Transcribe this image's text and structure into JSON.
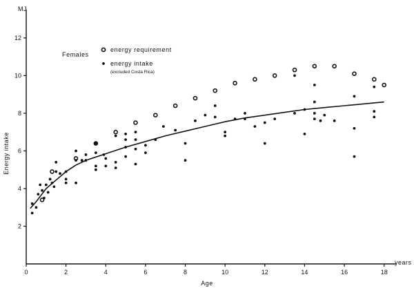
{
  "chart_data": {
    "type": "scatter",
    "title": "",
    "xlabel": "Age",
    "ylabel": "Energy intake",
    "x_unit": "years",
    "y_unit": "MJ",
    "xlim": [
      0,
      18.6
    ],
    "ylim": [
      0,
      13.5
    ],
    "xticks": [
      0,
      2,
      4,
      6,
      8,
      10,
      12,
      14,
      16,
      18
    ],
    "yticks": [
      2,
      4,
      6,
      8,
      10,
      12
    ],
    "grid": false,
    "legend": {
      "placement": "top-left",
      "heading": "Females",
      "entries": [
        {
          "label": "energy requirement",
          "note": "",
          "marker": "open-circle"
        },
        {
          "label": "energy intake",
          "note": "(excluded Costa Rica)",
          "marker": "filled-dot"
        }
      ]
    },
    "series": [
      {
        "name": "energy requirement",
        "marker": "open-circle",
        "points": [
          [
            0.8,
            3.4
          ],
          [
            1.3,
            4.9
          ],
          [
            2.5,
            5.6
          ],
          [
            3.5,
            6.4
          ],
          [
            4.5,
            7.0
          ],
          [
            5.5,
            7.5
          ],
          [
            6.5,
            7.9
          ],
          [
            7.5,
            8.4
          ],
          [
            8.5,
            8.8
          ],
          [
            9.5,
            9.2
          ],
          [
            10.5,
            9.6
          ],
          [
            11.5,
            9.8
          ],
          [
            12.5,
            10.0
          ],
          [
            13.5,
            10.3
          ],
          [
            14.5,
            10.5
          ],
          [
            15.5,
            10.5
          ],
          [
            16.5,
            10.1
          ],
          [
            17.5,
            9.8
          ],
          [
            18.0,
            9.5
          ]
        ]
      },
      {
        "name": "energy intake",
        "marker": "filled-dot",
        "points": [
          [
            0.3,
            3.2
          ],
          [
            0.3,
            2.7
          ],
          [
            0.5,
            3.0
          ],
          [
            0.6,
            3.7
          ],
          [
            0.7,
            4.2
          ],
          [
            0.8,
            3.9
          ],
          [
            0.9,
            3.5
          ],
          [
            1.0,
            4.2
          ],
          [
            1.1,
            3.8
          ],
          [
            1.2,
            4.5
          ],
          [
            1.3,
            4.3
          ],
          [
            1.4,
            4.1
          ],
          [
            1.5,
            4.9
          ],
          [
            1.5,
            5.4
          ],
          [
            1.7,
            4.8
          ],
          [
            2.0,
            4.5
          ],
          [
            2.0,
            4.3
          ],
          [
            2.0,
            4.9
          ],
          [
            2.5,
            6.0
          ],
          [
            2.5,
            5.5
          ],
          [
            2.5,
            4.3
          ],
          [
            2.8,
            5.5
          ],
          [
            3.0,
            5.8
          ],
          [
            3.0,
            5.5
          ],
          [
            3.5,
            6.4
          ],
          [
            3.5,
            5.9
          ],
          [
            3.5,
            5.0
          ],
          [
            3.5,
            5.2
          ],
          [
            3.9,
            5.8
          ],
          [
            4.0,
            5.6
          ],
          [
            4.0,
            5.2
          ],
          [
            4.5,
            6.8
          ],
          [
            4.5,
            5.4
          ],
          [
            4.5,
            5.1
          ],
          [
            5.0,
            6.9
          ],
          [
            5.0,
            6.6
          ],
          [
            5.0,
            6.2
          ],
          [
            5.0,
            5.7
          ],
          [
            5.5,
            7.0
          ],
          [
            5.5,
            6.6
          ],
          [
            5.5,
            6.1
          ],
          [
            5.5,
            5.3
          ],
          [
            6.0,
            6.3
          ],
          [
            6.0,
            5.9
          ],
          [
            6.5,
            6.6
          ],
          [
            6.9,
            7.3
          ],
          [
            7.5,
            7.1
          ],
          [
            8.0,
            6.4
          ],
          [
            8.0,
            5.5
          ],
          [
            8.5,
            7.6
          ],
          [
            9.0,
            7.9
          ],
          [
            9.5,
            8.4
          ],
          [
            9.5,
            7.8
          ],
          [
            10.0,
            7.0
          ],
          [
            10.0,
            6.8
          ],
          [
            10.5,
            7.7
          ],
          [
            11.0,
            8.0
          ],
          [
            11.0,
            7.7
          ],
          [
            11.5,
            7.3
          ],
          [
            12.0,
            7.5
          ],
          [
            12.0,
            6.4
          ],
          [
            12.5,
            7.7
          ],
          [
            13.5,
            10.0
          ],
          [
            13.5,
            8.0
          ],
          [
            14.0,
            8.2
          ],
          [
            14.0,
            6.9
          ],
          [
            14.5,
            9.5
          ],
          [
            14.5,
            8.6
          ],
          [
            14.5,
            8.0
          ],
          [
            14.5,
            7.7
          ],
          [
            14.8,
            7.6
          ],
          [
            15.0,
            7.9
          ],
          [
            15.5,
            7.6
          ],
          [
            16.5,
            8.9
          ],
          [
            16.5,
            7.2
          ],
          [
            16.5,
            5.7
          ],
          [
            17.5,
            9.4
          ],
          [
            17.5,
            8.1
          ],
          [
            17.5,
            7.8
          ]
        ]
      },
      {
        "name": "",
        "type": "line",
        "points": [
          [
            0.2,
            2.95
          ],
          [
            0.5,
            3.3
          ],
          [
            1.0,
            4.0
          ],
          [
            1.5,
            4.45
          ],
          [
            2.0,
            4.9
          ],
          [
            2.5,
            5.25
          ],
          [
            3.0,
            5.5
          ],
          [
            4.0,
            5.85
          ],
          [
            5.0,
            6.2
          ],
          [
            6.0,
            6.5
          ],
          [
            7.0,
            6.8
          ],
          [
            8.0,
            7.05
          ],
          [
            9.0,
            7.3
          ],
          [
            10.0,
            7.55
          ],
          [
            11.0,
            7.75
          ],
          [
            12.0,
            7.9
          ],
          [
            13.0,
            8.05
          ],
          [
            14.0,
            8.2
          ],
          [
            15.0,
            8.3
          ],
          [
            16.0,
            8.4
          ],
          [
            17.0,
            8.5
          ],
          [
            18.0,
            8.6
          ]
        ]
      }
    ]
  }
}
